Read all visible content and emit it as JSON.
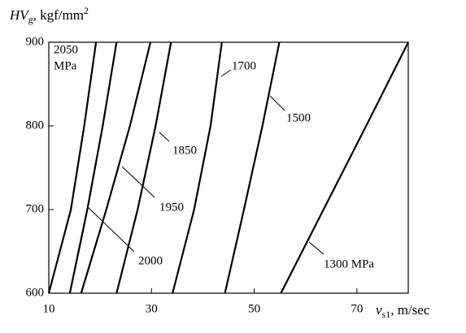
{
  "chart_data": {
    "type": "line",
    "ylabel": {
      "main": "HV",
      "sub": "g",
      "unit": ", kgf/mm",
      "sup": "2"
    },
    "xlabel": {
      "main": "v",
      "sub": "s1",
      "unit": ", m/sec"
    },
    "xlim": [
      10,
      80
    ],
    "xticks": [
      10,
      30,
      50,
      70
    ],
    "ylim": [
      600,
      900
    ],
    "yticks": [
      600,
      700,
      800,
      900
    ],
    "color": "#000000",
    "series": [
      {
        "x": [
          10,
          14.3,
          16.9,
          19.2
        ],
        "values": [
          600,
          700,
          800,
          900
        ]
      },
      {
        "x": [
          14.1,
          17.5,
          20.5,
          23.2
        ],
        "values": [
          600,
          700,
          800,
          900
        ]
      },
      {
        "x": [
          16.3,
          21.2,
          25.8,
          29.8
        ],
        "values": [
          600,
          700,
          800,
          900
        ]
      },
      {
        "x": [
          23.2,
          27.3,
          30.8,
          33.8
        ],
        "values": [
          600,
          700,
          800,
          900
        ]
      },
      {
        "x": [
          34.1,
          38.3,
          41.5,
          43.7
        ],
        "values": [
          600,
          700,
          800,
          900
        ]
      },
      {
        "x": [
          44.3,
          48.0,
          51.6,
          54.9
        ],
        "values": [
          600,
          700,
          800,
          900
        ]
      },
      {
        "x": [
          55.2,
          63.5,
          71.8,
          80
        ],
        "values": [
          600,
          700,
          800,
          900
        ]
      }
    ],
    "annotations": [
      "2050",
      "MPa",
      "2000",
      "1950",
      "1850",
      "1700",
      "1500",
      "1300 MPa"
    ]
  }
}
